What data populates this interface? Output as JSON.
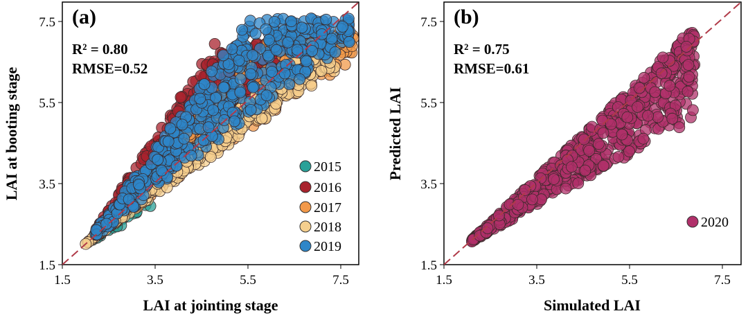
{
  "chart_data": [
    {
      "type": "scatter",
      "panel": "(a)",
      "xlabel": "LAI at jointing stage",
      "ylabel": "LAI at booting stage",
      "xlim": [
        1.5,
        7.9
      ],
      "ylim": [
        1.5,
        7.9
      ],
      "xticks": [
        "1.5",
        "3.5",
        "5.5",
        "7.5"
      ],
      "yticks": [
        "1.5",
        "3.5",
        "5.5",
        "7.5"
      ],
      "stats": {
        "r2": "R² = 0.80",
        "rmse": "RMSE=0.52"
      },
      "one_to_one_line": true,
      "legend_position": "bottom-right",
      "series": [
        {
          "name": "2015",
          "color": "#2aa198",
          "n": 45,
          "x_range": [
            2.1,
            3.6
          ],
          "seed": 15,
          "envelope": {
            "slope_low": 0.55,
            "slope_high": 1.35
          }
        },
        {
          "name": "2016",
          "color": "#a8232d",
          "n": 320,
          "x_range": [
            2.2,
            6.8
          ],
          "seed": 16,
          "envelope": {
            "slope_low": 1.0,
            "slope_high": 1.75,
            "cap": 6.9
          }
        },
        {
          "name": "2017",
          "color": "#f2994a",
          "n": 260,
          "x_range": [
            2.2,
            7.8
          ],
          "seed": 17,
          "envelope": {
            "slope_low": 0.78,
            "slope_high": 1.28,
            "cap": 7.1
          }
        },
        {
          "name": "2018",
          "color": "#f5cf8e",
          "n": 320,
          "x_range": [
            2.0,
            7.4
          ],
          "seed": 18,
          "envelope": {
            "slope_low": 0.78,
            "slope_high": 1.0,
            "cap": 6.8
          }
        },
        {
          "name": "2019",
          "color": "#2e86c8",
          "n": 520,
          "x_range": [
            2.2,
            7.7
          ],
          "seed": 19,
          "envelope": {
            "slope_low": 0.86,
            "slope_high": 1.55,
            "cap": 7.5
          }
        }
      ]
    },
    {
      "type": "scatter",
      "panel": "(b)",
      "xlabel": "Simulated LAI",
      "ylabel": "Predicted LAI",
      "xlim": [
        1.5,
        7.9
      ],
      "ylim": [
        1.5,
        7.9
      ],
      "xticks": [
        "1.5",
        "3.5",
        "5.5",
        "7.5"
      ],
      "yticks": [
        "1.5",
        "3.5",
        "5.5",
        "7.5"
      ],
      "stats": {
        "r2": "R² = 0.75",
        "rmse": "RMSE=0.61"
      },
      "one_to_one_line": true,
      "legend_position": "bottom-right",
      "series": [
        {
          "name": "2020",
          "color": "#b0306a",
          "n": 650,
          "x_range": [
            2.1,
            6.9
          ],
          "seed": 20,
          "envelope": {
            "slope_low": 0.62,
            "slope_high": 1.08,
            "cap": 7.4
          }
        }
      ]
    }
  ]
}
